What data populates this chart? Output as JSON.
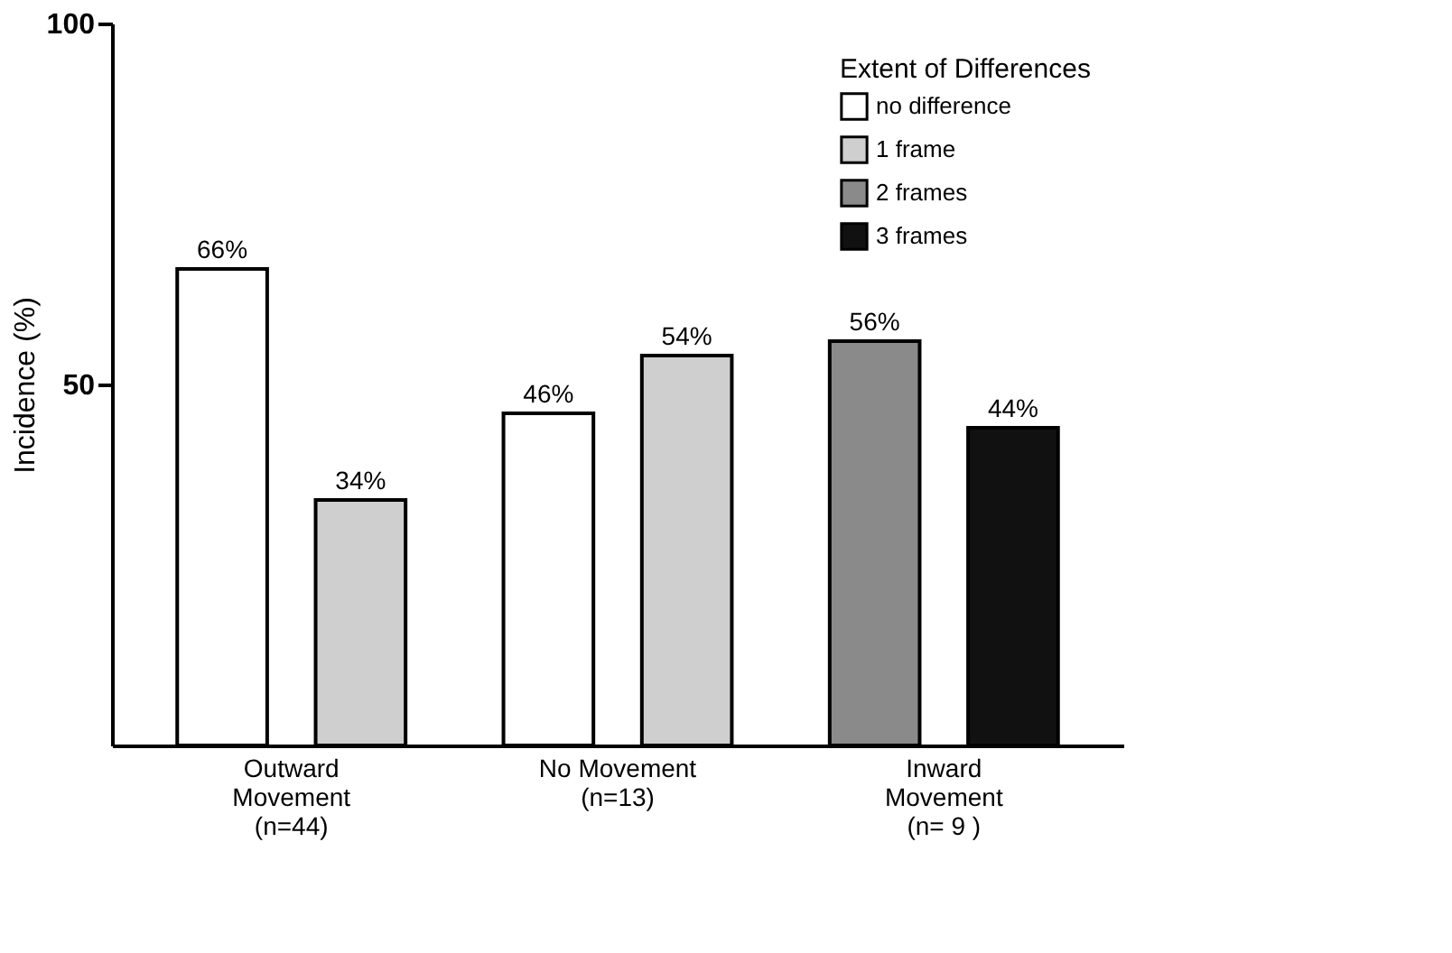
{
  "chart_data": {
    "type": "bar",
    "ylabel": "Incidence  (%)",
    "legend_title": "Extent of Differences",
    "legend": "top right",
    "grid": false,
    "ylim": [
      0,
      100
    ],
    "yticks": [
      50,
      100
    ],
    "categories": [
      "Outward\nMovement\n(n=44)",
      "No Movement\n\n(n=13)",
      "Inward\nMovement\n(n= 9 )"
    ],
    "series": [
      {
        "name": "no difference",
        "color": "#ffffff",
        "values": [
          66,
          46,
          null
        ],
        "value_labels": [
          "66%",
          "46%",
          null
        ]
      },
      {
        "name": "1 frame",
        "color": "#cfcfcf",
        "values": [
          34,
          54,
          null
        ],
        "value_labels": [
          "34%",
          "54%",
          null
        ]
      },
      {
        "name": "2 frames",
        "color": "#8a8a8a",
        "values": [
          null,
          null,
          56
        ],
        "value_labels": [
          null,
          null,
          "56%"
        ]
      },
      {
        "name": "3 frames",
        "color": "#111111",
        "values": [
          null,
          null,
          44
        ],
        "value_labels": [
          null,
          null,
          "44%"
        ]
      }
    ]
  }
}
